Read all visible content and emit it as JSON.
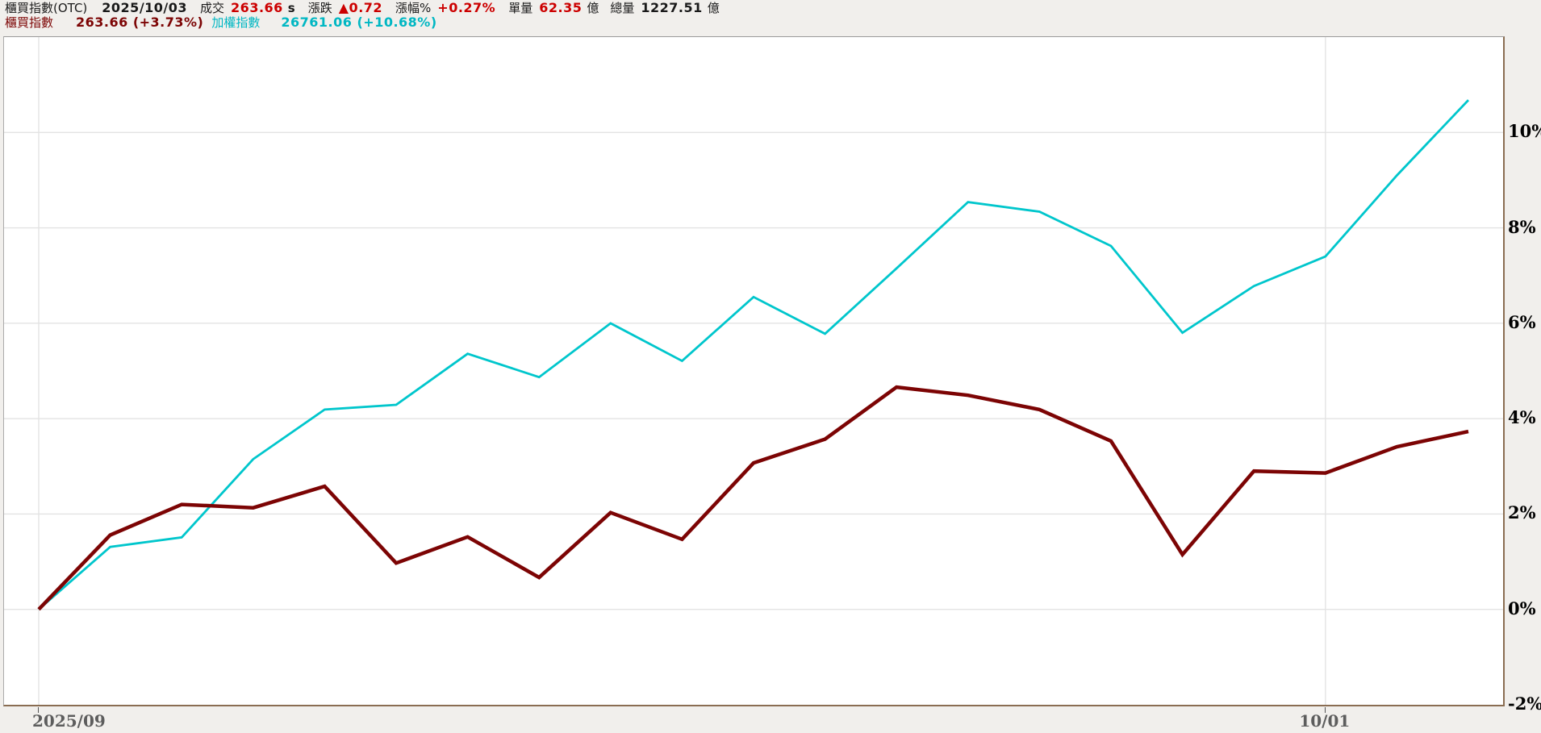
{
  "header": {
    "line1": {
      "instrument_name": "櫃買指數(OTC)",
      "date": "2025/10/03",
      "deal_label": "成交",
      "deal_price": "263.66",
      "deal_suffix": "s",
      "change_label": "漲跌",
      "change_value": "▲0.72",
      "change_pct_label": "漲幅%",
      "change_pct_value": "+0.27%",
      "unit_volume_label": "單量",
      "unit_volume_value": "62.35",
      "unit_volume_unit": "億",
      "total_volume_label": "總量",
      "total_volume_value": "1227.51",
      "total_volume_unit": "億"
    },
    "line2": {
      "series1_label": "櫃買指數",
      "series1_value": "263.66 (+3.73%)",
      "series2_label": "加權指數",
      "series2_value": "26761.06 (+10.68%)"
    }
  },
  "colors": {
    "otc_line": "#7c0404",
    "taiex_line": "#00c6cc",
    "up_red": "#cc0000",
    "grid": "#e3e3e3",
    "plot_background": "#ffffff",
    "page_background": "#f1efec"
  },
  "chart_data": {
    "type": "line",
    "unit": "percent_change",
    "n_points": 21,
    "ylim": [
      -2,
      12
    ],
    "grid": true,
    "legend_position": "top-left-header",
    "y_ticks": [
      {
        "value": 10,
        "label": "10%"
      },
      {
        "value": 8,
        "label": "8%"
      },
      {
        "value": 6,
        "label": "6%"
      },
      {
        "value": 4,
        "label": "4%"
      },
      {
        "value": 2,
        "label": "2%"
      },
      {
        "value": 0,
        "label": "0%"
      },
      {
        "value": -2,
        "label": "-2%"
      }
    ],
    "x_ticks": [
      {
        "index": 0,
        "label": "2025/09"
      },
      {
        "index": 18,
        "label": "10/01"
      }
    ],
    "series": [
      {
        "name": "加權指數",
        "color": "#00c6cc",
        "stroke_width": 2.8,
        "end_label": "+10.68%",
        "values": [
          0.0,
          1.31,
          1.51,
          3.15,
          4.19,
          4.29,
          5.36,
          4.87,
          6.0,
          5.21,
          6.55,
          5.78,
          7.15,
          8.54,
          8.34,
          7.62,
          5.8,
          6.78,
          7.4,
          9.1,
          10.68
        ]
      },
      {
        "name": "櫃買指數",
        "color": "#7c0404",
        "stroke_width": 4.5,
        "end_label": "+3.73%",
        "values": [
          0.0,
          1.56,
          2.2,
          2.13,
          2.58,
          0.97,
          1.52,
          0.67,
          2.03,
          1.47,
          3.07,
          3.57,
          4.66,
          4.49,
          4.19,
          3.53,
          1.15,
          2.9,
          2.86,
          3.41,
          3.73
        ]
      }
    ]
  }
}
